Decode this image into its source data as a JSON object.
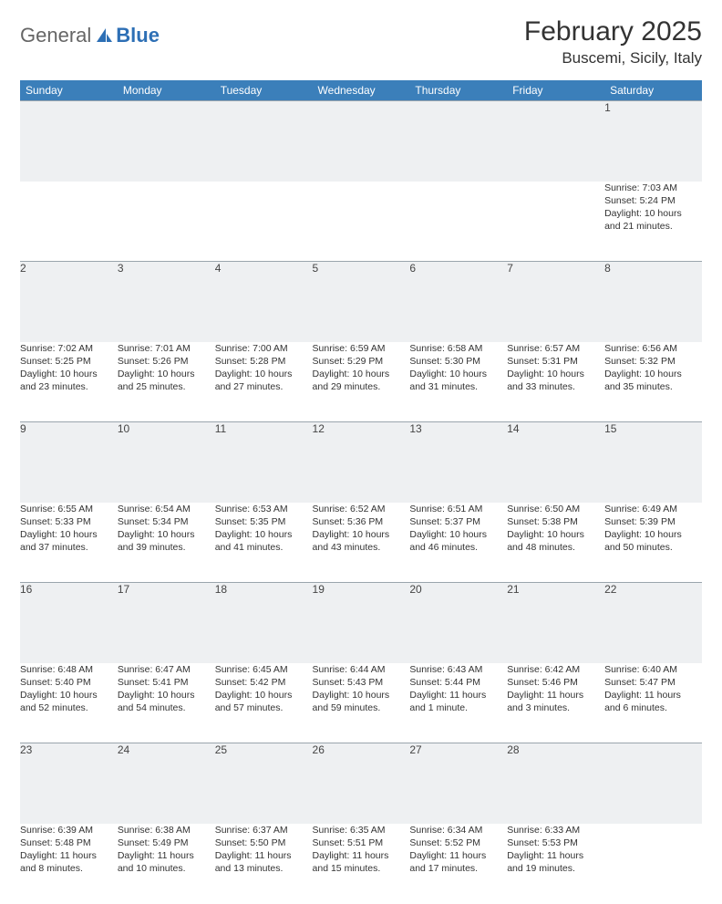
{
  "logo": {
    "text_general": "General",
    "text_blue": "Blue"
  },
  "header": {
    "month_title": "February 2025",
    "location": "Buscemi, Sicily, Italy"
  },
  "colors": {
    "header_bg": "#3b7fba",
    "header_fg": "#ffffff",
    "daynum_bg": "#eef0f2",
    "daynum_border": "#9aa5ad",
    "body_text": "#333333"
  },
  "day_labels": [
    "Sunday",
    "Monday",
    "Tuesday",
    "Wednesday",
    "Thursday",
    "Friday",
    "Saturday"
  ],
  "weeks": [
    {
      "nums": [
        "",
        "",
        "",
        "",
        "",
        "",
        "1"
      ],
      "cells": [
        null,
        null,
        null,
        null,
        null,
        null,
        {
          "sunrise": "Sunrise: 7:03 AM",
          "sunset": "Sunset: 5:24 PM",
          "day1": "Daylight: 10 hours",
          "day2": "and 21 minutes."
        }
      ]
    },
    {
      "nums": [
        "2",
        "3",
        "4",
        "5",
        "6",
        "7",
        "8"
      ],
      "cells": [
        {
          "sunrise": "Sunrise: 7:02 AM",
          "sunset": "Sunset: 5:25 PM",
          "day1": "Daylight: 10 hours",
          "day2": "and 23 minutes."
        },
        {
          "sunrise": "Sunrise: 7:01 AM",
          "sunset": "Sunset: 5:26 PM",
          "day1": "Daylight: 10 hours",
          "day2": "and 25 minutes."
        },
        {
          "sunrise": "Sunrise: 7:00 AM",
          "sunset": "Sunset: 5:28 PM",
          "day1": "Daylight: 10 hours",
          "day2": "and 27 minutes."
        },
        {
          "sunrise": "Sunrise: 6:59 AM",
          "sunset": "Sunset: 5:29 PM",
          "day1": "Daylight: 10 hours",
          "day2": "and 29 minutes."
        },
        {
          "sunrise": "Sunrise: 6:58 AM",
          "sunset": "Sunset: 5:30 PM",
          "day1": "Daylight: 10 hours",
          "day2": "and 31 minutes."
        },
        {
          "sunrise": "Sunrise: 6:57 AM",
          "sunset": "Sunset: 5:31 PM",
          "day1": "Daylight: 10 hours",
          "day2": "and 33 minutes."
        },
        {
          "sunrise": "Sunrise: 6:56 AM",
          "sunset": "Sunset: 5:32 PM",
          "day1": "Daylight: 10 hours",
          "day2": "and 35 minutes."
        }
      ]
    },
    {
      "nums": [
        "9",
        "10",
        "11",
        "12",
        "13",
        "14",
        "15"
      ],
      "cells": [
        {
          "sunrise": "Sunrise: 6:55 AM",
          "sunset": "Sunset: 5:33 PM",
          "day1": "Daylight: 10 hours",
          "day2": "and 37 minutes."
        },
        {
          "sunrise": "Sunrise: 6:54 AM",
          "sunset": "Sunset: 5:34 PM",
          "day1": "Daylight: 10 hours",
          "day2": "and 39 minutes."
        },
        {
          "sunrise": "Sunrise: 6:53 AM",
          "sunset": "Sunset: 5:35 PM",
          "day1": "Daylight: 10 hours",
          "day2": "and 41 minutes."
        },
        {
          "sunrise": "Sunrise: 6:52 AM",
          "sunset": "Sunset: 5:36 PM",
          "day1": "Daylight: 10 hours",
          "day2": "and 43 minutes."
        },
        {
          "sunrise": "Sunrise: 6:51 AM",
          "sunset": "Sunset: 5:37 PM",
          "day1": "Daylight: 10 hours",
          "day2": "and 46 minutes."
        },
        {
          "sunrise": "Sunrise: 6:50 AM",
          "sunset": "Sunset: 5:38 PM",
          "day1": "Daylight: 10 hours",
          "day2": "and 48 minutes."
        },
        {
          "sunrise": "Sunrise: 6:49 AM",
          "sunset": "Sunset: 5:39 PM",
          "day1": "Daylight: 10 hours",
          "day2": "and 50 minutes."
        }
      ]
    },
    {
      "nums": [
        "16",
        "17",
        "18",
        "19",
        "20",
        "21",
        "22"
      ],
      "cells": [
        {
          "sunrise": "Sunrise: 6:48 AM",
          "sunset": "Sunset: 5:40 PM",
          "day1": "Daylight: 10 hours",
          "day2": "and 52 minutes."
        },
        {
          "sunrise": "Sunrise: 6:47 AM",
          "sunset": "Sunset: 5:41 PM",
          "day1": "Daylight: 10 hours",
          "day2": "and 54 minutes."
        },
        {
          "sunrise": "Sunrise: 6:45 AM",
          "sunset": "Sunset: 5:42 PM",
          "day1": "Daylight: 10 hours",
          "day2": "and 57 minutes."
        },
        {
          "sunrise": "Sunrise: 6:44 AM",
          "sunset": "Sunset: 5:43 PM",
          "day1": "Daylight: 10 hours",
          "day2": "and 59 minutes."
        },
        {
          "sunrise": "Sunrise: 6:43 AM",
          "sunset": "Sunset: 5:44 PM",
          "day1": "Daylight: 11 hours",
          "day2": "and 1 minute."
        },
        {
          "sunrise": "Sunrise: 6:42 AM",
          "sunset": "Sunset: 5:46 PM",
          "day1": "Daylight: 11 hours",
          "day2": "and 3 minutes."
        },
        {
          "sunrise": "Sunrise: 6:40 AM",
          "sunset": "Sunset: 5:47 PM",
          "day1": "Daylight: 11 hours",
          "day2": "and 6 minutes."
        }
      ]
    },
    {
      "nums": [
        "23",
        "24",
        "25",
        "26",
        "27",
        "28",
        ""
      ],
      "cells": [
        {
          "sunrise": "Sunrise: 6:39 AM",
          "sunset": "Sunset: 5:48 PM",
          "day1": "Daylight: 11 hours",
          "day2": "and 8 minutes."
        },
        {
          "sunrise": "Sunrise: 6:38 AM",
          "sunset": "Sunset: 5:49 PM",
          "day1": "Daylight: 11 hours",
          "day2": "and 10 minutes."
        },
        {
          "sunrise": "Sunrise: 6:37 AM",
          "sunset": "Sunset: 5:50 PM",
          "day1": "Daylight: 11 hours",
          "day2": "and 13 minutes."
        },
        {
          "sunrise": "Sunrise: 6:35 AM",
          "sunset": "Sunset: 5:51 PM",
          "day1": "Daylight: 11 hours",
          "day2": "and 15 minutes."
        },
        {
          "sunrise": "Sunrise: 6:34 AM",
          "sunset": "Sunset: 5:52 PM",
          "day1": "Daylight: 11 hours",
          "day2": "and 17 minutes."
        },
        {
          "sunrise": "Sunrise: 6:33 AM",
          "sunset": "Sunset: 5:53 PM",
          "day1": "Daylight: 11 hours",
          "day2": "and 19 minutes."
        },
        null
      ]
    }
  ]
}
